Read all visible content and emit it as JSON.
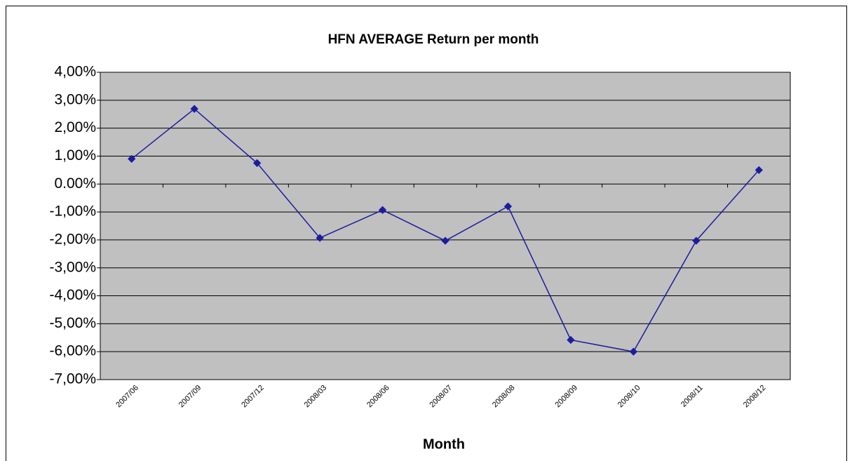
{
  "chart_data": {
    "type": "line",
    "title": "HFN AVERAGE Return per month",
    "xlabel": "Month",
    "categories": [
      "2007/06",
      "2007/09",
      "2007/12",
      "2008/03",
      "2008/06",
      "2008/07",
      "2008/08",
      "2008/09",
      "2008/10",
      "2008/11",
      "2008/12"
    ],
    "series": [
      {
        "name": "HFN AVERAGE",
        "color": "#1c1ca0",
        "values": [
          0.9,
          2.69,
          0.75,
          -1.93,
          -0.93,
          -2.03,
          -0.8,
          -5.58,
          -6.0,
          -2.03,
          0.5
        ]
      }
    ],
    "ylim": [
      -7,
      4
    ],
    "yticks": [
      {
        "value": 4,
        "label": "4,00%"
      },
      {
        "value": 3,
        "label": "3,00%"
      },
      {
        "value": 2,
        "label": "2,00%"
      },
      {
        "value": 1,
        "label": "1,00%"
      },
      {
        "value": 0,
        "label": "0.00%"
      },
      {
        "value": -1,
        "label": "-1,00%"
      },
      {
        "value": -2,
        "label": "-2,00%"
      },
      {
        "value": -3,
        "label": "-3,00%"
      },
      {
        "value": -4,
        "label": "-4,00%"
      },
      {
        "value": -5,
        "label": "-5,00%"
      },
      {
        "value": -6,
        "label": "-6,00%"
      },
      {
        "value": -7,
        "label": "-7,00%"
      }
    ],
    "grid": true
  }
}
